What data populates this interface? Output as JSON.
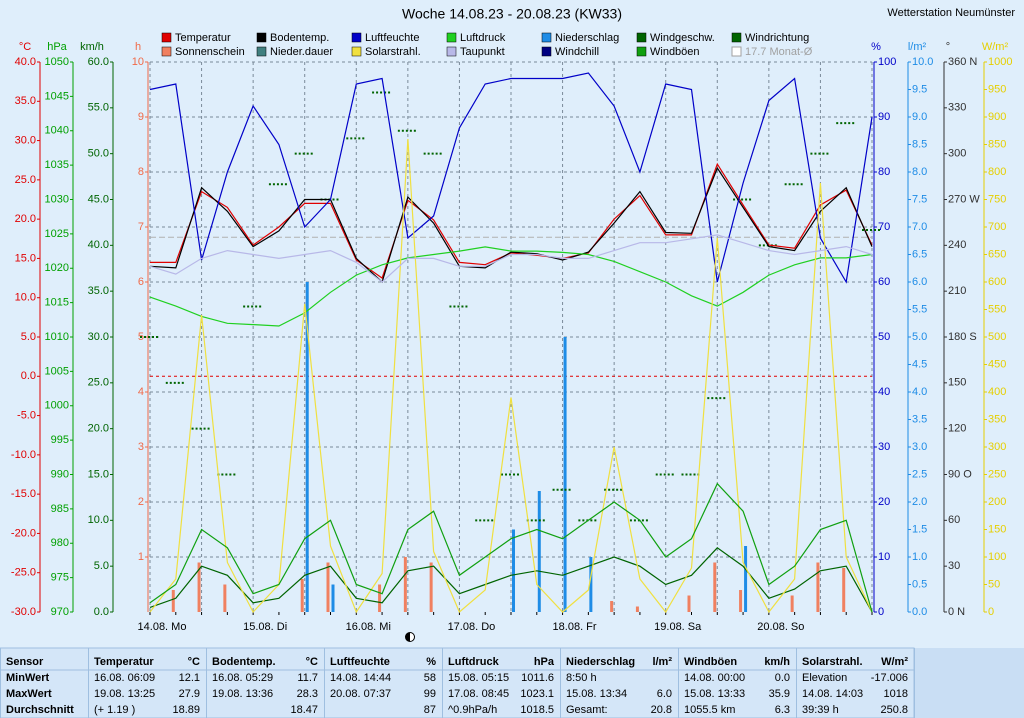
{
  "chart_data": {
    "type": "line",
    "title": "Woche 14.08.23 - 20.08.23 (KW33)",
    "station": "Wetterstation Neumünster",
    "categories": [
      "14.08. Mo",
      null,
      null,
      null,
      "15.08. Di",
      null,
      null,
      null,
      "16.08. Mi",
      null,
      null,
      null,
      "17.08. Do",
      null,
      null,
      null,
      "18.08. Fr",
      null,
      null,
      null,
      "19.08. Sa",
      null,
      null,
      null,
      "20.08. So",
      null,
      null,
      null,
      null
    ],
    "y_axes": [
      {
        "unit": "°C",
        "color": "#e00000",
        "lim": [
          -30,
          40
        ],
        "ticks": [
          {
            "value": 40,
            "label": "40.0"
          },
          {
            "value": 35,
            "label": "35.0"
          },
          {
            "value": 30,
            "label": "30.0"
          },
          {
            "value": 25,
            "label": "25.0"
          },
          {
            "value": 20,
            "label": "20.0"
          },
          {
            "value": 15,
            "label": "15.0"
          },
          {
            "value": 10,
            "label": "10.0"
          },
          {
            "value": 5,
            "label": "5.0"
          },
          {
            "value": 0,
            "label": "0.0"
          },
          {
            "value": -5,
            "label": "-5.0"
          },
          {
            "value": -10,
            "label": "-10.0"
          },
          {
            "value": -15,
            "label": "-15.0"
          },
          {
            "value": -20,
            "label": "-20.0"
          },
          {
            "value": -25,
            "label": "-25.0"
          },
          {
            "value": -30,
            "label": "-30.0"
          }
        ]
      },
      {
        "unit": "hPa",
        "color": "#00a000",
        "lim": [
          970,
          1050
        ],
        "ticks": [
          1050,
          1045,
          1040,
          1035,
          1030,
          1025,
          1020,
          1015,
          1010,
          1005,
          1000,
          995,
          990,
          985,
          980,
          975,
          970
        ]
      },
      {
        "unit": "km/h",
        "color": "#006400",
        "lim": [
          0,
          60
        ],
        "ticks": [
          {
            "value": 60,
            "label": "60.0"
          },
          {
            "value": 55,
            "label": "55.0"
          },
          {
            "value": 50,
            "label": "50.0"
          },
          {
            "value": 45,
            "label": "45.0"
          },
          {
            "value": 40,
            "label": "40.0"
          },
          {
            "value": 35,
            "label": "35.0"
          },
          {
            "value": 30,
            "label": "30.0"
          },
          {
            "value": 25,
            "label": "25.0"
          },
          {
            "value": 20,
            "label": "20.0"
          },
          {
            "value": 15,
            "label": "15.0"
          },
          {
            "value": 10,
            "label": "10.0"
          },
          {
            "value": 5,
            "label": "5.0"
          },
          {
            "value": 0,
            "label": "0.0"
          }
        ]
      },
      {
        "unit": "h",
        "color": "#f06a48",
        "lim": [
          0,
          10
        ],
        "grid": true,
        "ticks": [
          10,
          9,
          8,
          7,
          6,
          5,
          4,
          3,
          2,
          1
        ]
      },
      {
        "unit": "%",
        "color": "#0000c8",
        "lim": [
          0,
          100
        ],
        "ticks": [
          100,
          90,
          80,
          70,
          60,
          50,
          40,
          30,
          20,
          10,
          0
        ]
      },
      {
        "unit": "l/m²",
        "color": "#1e8ce6",
        "lim": [
          0,
          10
        ],
        "ticks": [
          {
            "value": 10,
            "label": "10.0"
          },
          {
            "value": 9.5,
            "label": "9.5"
          },
          {
            "value": 9,
            "label": "9.0"
          },
          {
            "value": 8.5,
            "label": "8.5"
          },
          {
            "value": 8,
            "label": "8.0"
          },
          {
            "value": 7.5,
            "label": "7.5"
          },
          {
            "value": 7,
            "label": "7.0"
          },
          {
            "value": 6.5,
            "label": "6.5"
          },
          {
            "value": 6,
            "label": "6.0"
          },
          {
            "value": 5.5,
            "label": "5.5"
          },
          {
            "value": 5,
            "label": "5.0"
          },
          {
            "value": 4.5,
            "label": "4.5"
          },
          {
            "value": 4,
            "label": "4.0"
          },
          {
            "value": 3.5,
            "label": "3.5"
          },
          {
            "value": 3,
            "label": "3.0"
          },
          {
            "value": 2.5,
            "label": "2.5"
          },
          {
            "value": 2,
            "label": "2.0"
          },
          {
            "value": 1.5,
            "label": "1.5"
          },
          {
            "value": 1,
            "label": "1.0"
          },
          {
            "value": 0.5,
            "label": "0.5"
          },
          {
            "value": 0,
            "label": "0.0"
          }
        ]
      },
      {
        "unit": "°",
        "color": "#303030",
        "lim": [
          0,
          360
        ],
        "ticks": [
          {
            "value": 360,
            "label": "360 N"
          },
          330,
          300,
          {
            "value": 270,
            "label": "270 W"
          },
          240,
          210,
          {
            "value": 180,
            "label": "180 S"
          },
          150,
          120,
          {
            "value": 90,
            "label": "90 O"
          },
          60,
          30,
          {
            "value": 0,
            "label": "0 N"
          }
        ]
      },
      {
        "unit": "W/m²",
        "color": "#e6cf00",
        "lim": [
          0,
          1000
        ],
        "ticks": [
          1000,
          950,
          900,
          850,
          800,
          750,
          700,
          650,
          600,
          550,
          500,
          450,
          400,
          350,
          300,
          250,
          200,
          150,
          100,
          50,
          0
        ]
      }
    ],
    "series": [
      {
        "name": "Temperatur",
        "color": "#e00000",
        "axis": 0,
        "kind": "line",
        "values": [
          14.5,
          14.5,
          23.5,
          21.5,
          16.7,
          19,
          22,
          22,
          14.8,
          12.5,
          22.4,
          19.9,
          14.5,
          14.2,
          15.7,
          15.4,
          15,
          15.7,
          20,
          23,
          18,
          18,
          27,
          21.8,
          16.7,
          16.3,
          21.8,
          23.7,
          16.7
        ]
      },
      {
        "name": "Bodentemp.",
        "color": "#000000",
        "axis": 0,
        "kind": "line",
        "values": [
          14,
          13.8,
          24,
          21,
          16.5,
          18.5,
          22.5,
          22.5,
          15,
          12,
          22.8,
          19.5,
          14,
          13.8,
          15.8,
          15.6,
          14.8,
          15.8,
          19.5,
          23.5,
          18.3,
          18.2,
          26.5,
          21.5,
          16.5,
          16,
          21,
          24,
          16.5
        ]
      },
      {
        "name": "Luftfeuchte",
        "color": "#0000c8",
        "axis": 4,
        "kind": "line",
        "values": [
          95,
          96,
          64,
          80,
          92,
          85,
          70,
          75,
          96,
          97,
          68,
          72,
          88,
          96,
          97,
          97,
          97,
          98,
          92,
          80,
          96,
          95,
          60,
          78,
          93,
          97,
          68,
          60,
          90
        ]
      },
      {
        "name": "Luftdruck",
        "color": "#20d020",
        "axis": 1,
        "kind": "line",
        "values": [
          1015.8,
          1014.5,
          1013,
          1012,
          1011.8,
          1011.6,
          1013.5,
          1016.5,
          1019,
          1020.5,
          1021.5,
          1022,
          1022.5,
          1023.1,
          1022.5,
          1022.5,
          1022.3,
          1022,
          1021,
          1019.5,
          1018,
          1016,
          1014.5,
          1016.5,
          1019,
          1020.5,
          1021.5,
          1021.5,
          1022
        ]
      },
      {
        "name": "Niederschlag",
        "color": "#1e8ce6",
        "axis": 5,
        "kind": "bar",
        "values": [
          0,
          0,
          0,
          0,
          0,
          0,
          6,
          0.5,
          0,
          0,
          0,
          0,
          0,
          0,
          1.5,
          2.2,
          5,
          1,
          0,
          0,
          0,
          0,
          0,
          1.2,
          0,
          0,
          0,
          0,
          0
        ]
      },
      {
        "name": "Windgeschw.",
        "color": "#006400",
        "axis": 2,
        "kind": "line",
        "values": [
          0.5,
          1.5,
          5,
          4,
          1,
          1.5,
          4,
          5,
          1.5,
          1,
          4.5,
          5,
          2,
          3,
          4,
          4.5,
          4,
          5,
          6,
          5,
          3,
          4,
          7,
          5,
          1.5,
          2.5,
          4.5,
          5,
          0
        ]
      },
      {
        "name": "Windrichtung",
        "color": "#006400",
        "axis": 6,
        "kind": "dots",
        "values": [
          180,
          150,
          120,
          90,
          200,
          280,
          300,
          270,
          310,
          340,
          315,
          300,
          200,
          60,
          90,
          60,
          80,
          60,
          80,
          60,
          90,
          90,
          140,
          270,
          240,
          280,
          300,
          320,
          250
        ]
      },
      {
        "name": "Sonnenschein",
        "color": "#f08060",
        "axis": 3,
        "kind": "bar",
        "values": [
          0,
          0.4,
          0.9,
          0.5,
          0,
          0,
          0.6,
          0.9,
          0,
          0.5,
          1,
          0.9,
          0,
          0,
          0,
          0,
          0,
          0,
          0.2,
          0.1,
          0,
          0.3,
          0.9,
          0.4,
          0,
          0.3,
          0.9,
          0.8,
          0
        ]
      },
      {
        "name": "Solarstrahl.",
        "color": "#f0e040",
        "axis": 7,
        "kind": "line",
        "values": [
          0,
          60,
          540,
          90,
          0,
          50,
          560,
          120,
          0,
          70,
          860,
          110,
          0,
          40,
          390,
          50,
          0,
          40,
          300,
          60,
          0,
          80,
          680,
          90,
          0,
          60,
          780,
          100,
          0
        ]
      },
      {
        "name": "Taupunkt",
        "color": "#b8b8e8",
        "axis": 0,
        "kind": "line",
        "values": [
          14,
          13,
          15,
          16,
          15.5,
          15,
          15.5,
          16,
          14.5,
          12,
          15,
          15,
          14,
          14,
          15.5,
          15.5,
          15,
          15,
          16,
          17,
          17,
          17.5,
          18,
          17,
          16,
          15.5,
          16,
          16.5,
          15.5
        ]
      },
      {
        "name": "Windböen",
        "color": "#10a010",
        "axis": 2,
        "kind": "line",
        "values": [
          1,
          3,
          9,
          7,
          2,
          3,
          8,
          10,
          3,
          2,
          9,
          11,
          4,
          6,
          8,
          9,
          8,
          10,
          12,
          10,
          6,
          8,
          14,
          11,
          3,
          5,
          9,
          10,
          0
        ]
      }
    ],
    "legend_extra": [
      {
        "name": "Nieder.dauer",
        "color": "#408080"
      },
      {
        "name": "Windchill",
        "color": "#000080"
      }
    ],
    "monthly_mean": {
      "value": 17.7,
      "label": "17.7 Monat-Ø",
      "axis": 0,
      "color": "#b0b0b0"
    }
  },
  "table": {
    "row_labels": [
      "Sensor",
      "MinWert",
      "MaxWert",
      "Durchschnitt"
    ],
    "columns": [
      {
        "name": "Temperatur",
        "unit": "°C",
        "min_label": "16.08. 06:09",
        "min": "12.1",
        "max_label": "19.08. 13:25",
        "max": "27.9",
        "avg_label": "(+ 1.19 )",
        "avg": "18.89"
      },
      {
        "name": "Bodentemp.",
        "unit": "°C",
        "min_label": "16.08. 05:29",
        "min": "11.7",
        "max_label": "19.08. 13:36",
        "max": "28.3",
        "avg": "18.47"
      },
      {
        "name": "Luftfeuchte",
        "unit": "%",
        "min_label": "14.08. 14:44",
        "min": "58",
        "max_label": "20.08. 07:37",
        "max": "99",
        "avg": "87"
      },
      {
        "name": "Luftdruck",
        "unit": "hPa",
        "min_label": "15.08. 05:15",
        "min": "1011.6",
        "max_label": "17.08. 08:45",
        "max": "1023.1",
        "avg_label": "^0.9hPa/h",
        "avg": "1018.5"
      },
      {
        "name": "Niederschlag",
        "unit": "l/m²",
        "min_label": "8:50 h",
        "max_label": "15.08. 13:34",
        "max": "6.0",
        "avg_label": "Gesamt:",
        "avg": "20.8"
      },
      {
        "name": "Windböen",
        "unit": "km/h",
        "min_label": "14.08. 00:00",
        "min": "0.0",
        "max_label": "15.08. 13:33",
        "max": "35.9",
        "avg_label": "1055.5 km",
        "avg": "6.3"
      },
      {
        "name": "Solarstrahl.",
        "unit": "W/m²",
        "min_label": "Elevation",
        "min": "-17.006",
        "max_label": "14.08. 14:03",
        "max": "1018",
        "avg_label": "39:39 h",
        "avg": "250.8"
      }
    ]
  }
}
